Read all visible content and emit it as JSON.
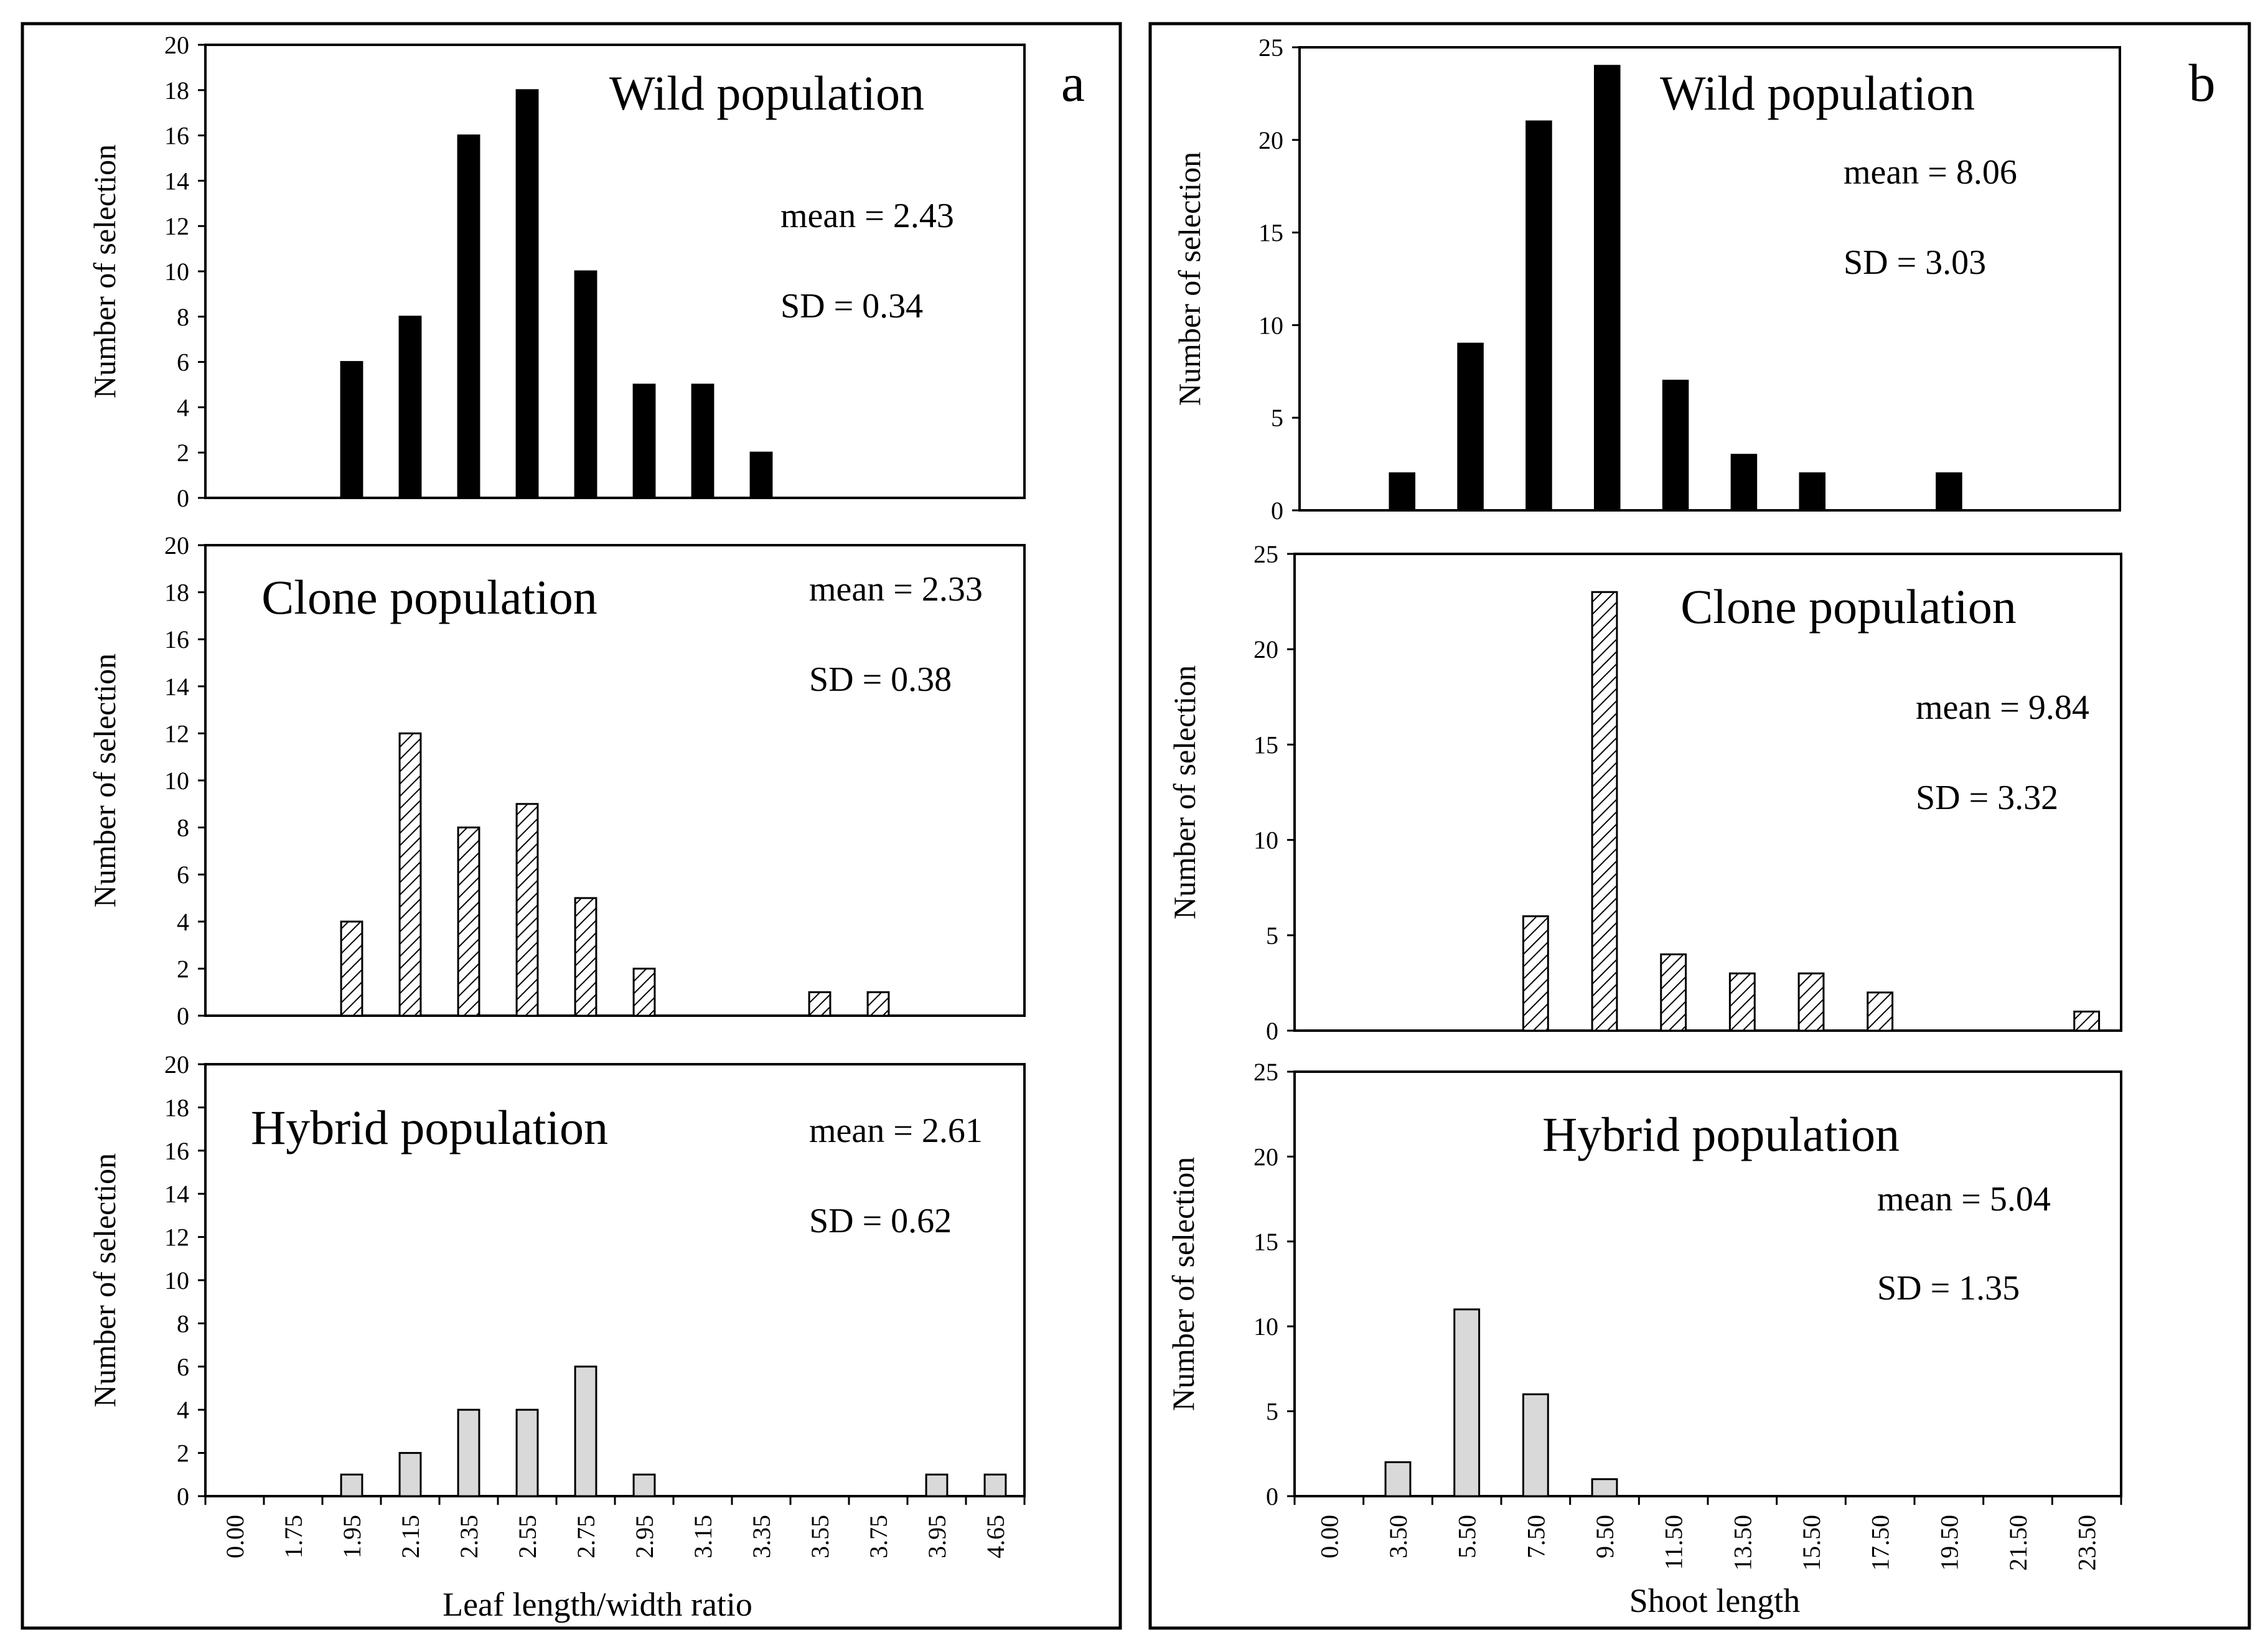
{
  "figure": {
    "panel_a_label": "a",
    "panel_b_label": "b",
    "panel_a_xlabel": "Leaf length/width ratio",
    "panel_b_xlabel": "Shoot length"
  },
  "colors": {
    "wild": "#000000",
    "clone_hatch_bg": "#ffffff",
    "clone_hatch_line": "#000000",
    "hybrid": "#d9d9d9",
    "axis": "#000000"
  },
  "chart_data": [
    {
      "id": "a-wild",
      "type": "bar",
      "style": "wild",
      "title": "Wild population",
      "mean": "mean = 2.43",
      "sd": "SD = 0.34",
      "ylabel": "Number of selection",
      "xlabel": "Leaf length/width ratio",
      "ylim": [
        0,
        20
      ],
      "yticks": [
        0,
        2,
        4,
        6,
        8,
        10,
        12,
        14,
        16,
        18,
        20
      ],
      "categories": [
        "0.00",
        "1.75",
        "1.95",
        "2.15",
        "2.35",
        "2.55",
        "2.75",
        "2.95",
        "3.15",
        "3.35",
        "3.55",
        "3.75",
        "3.95",
        "4.65"
      ],
      "values": [
        0,
        0,
        6,
        8,
        16,
        18,
        10,
        5,
        5,
        2,
        0,
        0,
        0,
        0
      ],
      "show_xticks": false
    },
    {
      "id": "a-clone",
      "type": "bar",
      "style": "clone",
      "title": "Clone population",
      "mean": "mean = 2.33",
      "sd": "SD = 0.38",
      "ylabel": "Number of selection",
      "xlabel": "Leaf length/width ratio",
      "ylim": [
        0,
        20
      ],
      "yticks": [
        0,
        2,
        4,
        6,
        8,
        10,
        12,
        14,
        16,
        18,
        20
      ],
      "categories": [
        "0.00",
        "1.75",
        "1.95",
        "2.15",
        "2.35",
        "2.55",
        "2.75",
        "2.95",
        "3.15",
        "3.35",
        "3.55",
        "3.75",
        "3.95",
        "4.65"
      ],
      "values": [
        0,
        0,
        4,
        12,
        8,
        9,
        5,
        2,
        0,
        0,
        1,
        1,
        0,
        0
      ],
      "show_xticks": false
    },
    {
      "id": "a-hybrid",
      "type": "bar",
      "style": "hybrid",
      "title": "Hybrid population",
      "mean": "mean = 2.61",
      "sd": "SD = 0.62",
      "ylabel": "Number of selection",
      "xlabel": "Leaf length/width ratio",
      "ylim": [
        0,
        20
      ],
      "yticks": [
        0,
        2,
        4,
        6,
        8,
        10,
        12,
        14,
        16,
        18,
        20
      ],
      "categories": [
        "0.00",
        "1.75",
        "1.95",
        "2.15",
        "2.35",
        "2.55",
        "2.75",
        "2.95",
        "3.15",
        "3.35",
        "3.55",
        "3.75",
        "3.95",
        "4.65"
      ],
      "values": [
        0,
        0,
        1,
        2,
        4,
        4,
        6,
        1,
        0,
        0,
        0,
        0,
        1,
        1
      ],
      "show_xticks": true
    },
    {
      "id": "b-wild",
      "type": "bar",
      "style": "wild",
      "title": "Wild population",
      "mean": "mean = 8.06",
      "sd": "SD = 3.03",
      "ylabel": "Number of selection",
      "xlabel": "Shoot length",
      "ylim": [
        0,
        25
      ],
      "yticks": [
        0,
        5,
        10,
        15,
        20,
        25
      ],
      "categories": [
        "0.00",
        "3.50",
        "5.50",
        "7.50",
        "9.50",
        "11.50",
        "13.50",
        "15.50",
        "17.50",
        "19.50",
        "21.50",
        "23.50"
      ],
      "values": [
        0,
        2,
        9,
        21,
        24,
        7,
        3,
        2,
        0,
        2,
        0,
        0
      ],
      "show_xticks": false
    },
    {
      "id": "b-clone",
      "type": "bar",
      "style": "clone",
      "title": "Clone population",
      "mean": "mean = 9.84",
      "sd": "SD = 3.32",
      "ylabel": "Number of selection",
      "xlabel": "Shoot length",
      "ylim": [
        0,
        25
      ],
      "yticks": [
        0,
        5,
        10,
        15,
        20,
        25
      ],
      "categories": [
        "0.00",
        "3.50",
        "5.50",
        "7.50",
        "9.50",
        "11.50",
        "13.50",
        "15.50",
        "17.50",
        "19.50",
        "21.50",
        "23.50"
      ],
      "values": [
        0,
        0,
        0,
        6,
        23,
        4,
        3,
        3,
        2,
        0,
        0,
        1
      ],
      "show_xticks": false
    },
    {
      "id": "b-hybrid",
      "type": "bar",
      "style": "hybrid",
      "title": "Hybrid population",
      "mean": "mean = 5.04",
      "sd": "SD = 1.35",
      "ylabel": "Number of selection",
      "xlabel": "Shoot length",
      "ylim": [
        0,
        25
      ],
      "yticks": [
        0,
        5,
        10,
        15,
        20,
        25
      ],
      "categories": [
        "0.00",
        "3.50",
        "5.50",
        "7.50",
        "9.50",
        "11.50",
        "13.50",
        "15.50",
        "17.50",
        "19.50",
        "21.50",
        "23.50"
      ],
      "values": [
        0,
        2,
        11,
        6,
        1,
        0,
        0,
        0,
        0,
        0,
        0,
        0
      ],
      "show_xticks": true
    }
  ]
}
